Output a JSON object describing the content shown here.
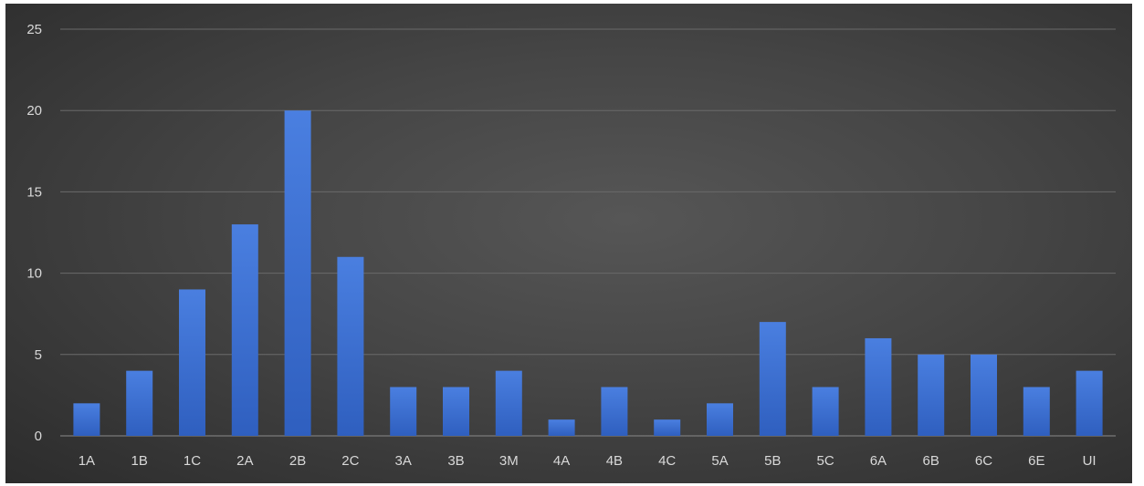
{
  "chart_data": {
    "type": "bar",
    "title": "",
    "xlabel": "",
    "ylabel": "",
    "categories": [
      "1A",
      "1B",
      "1C",
      "2A",
      "2B",
      "2C",
      "3A",
      "3B",
      "3M",
      "4A",
      "4B",
      "4C",
      "5A",
      "5B",
      "5C",
      "6A",
      "6B",
      "6C",
      "6E",
      "UI"
    ],
    "values": [
      2,
      4,
      9,
      13,
      20,
      11,
      3,
      3,
      4,
      1,
      3,
      1,
      2,
      7,
      3,
      6,
      5,
      5,
      3,
      4
    ],
    "ylim": [
      0,
      25
    ],
    "yticks": [
      0,
      5,
      10,
      15,
      20,
      25
    ],
    "grid": true,
    "legend": "none",
    "colors": {
      "background_center": "#565656",
      "background_edge": "#2c2c2c",
      "bar_top": "#4a7fe0",
      "bar_bottom": "#2f5fbf",
      "grid": "#6a6a6a",
      "text": "#d9d9d9"
    }
  }
}
